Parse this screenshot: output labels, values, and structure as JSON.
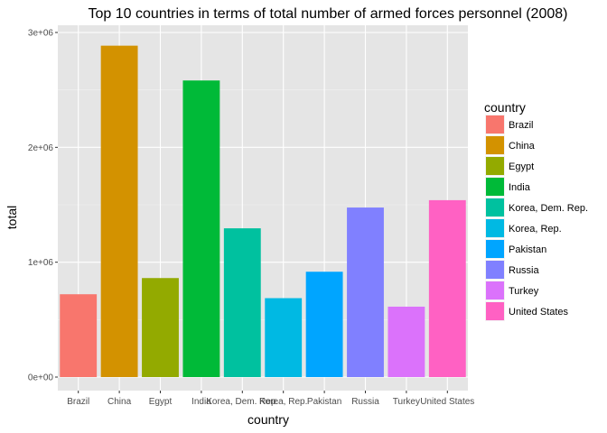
{
  "chart_data": {
    "type": "bar",
    "title": "Top 10 countries in terms of total number of armed forces personnel (2008)",
    "xlabel": "country",
    "ylabel": "total",
    "categories": [
      "Brazil",
      "China",
      "Egypt",
      "India",
      "Korea, Dem. Rep.",
      "Korea, Rep.",
      "Pakistan",
      "Russia",
      "Turkey",
      "United States"
    ],
    "values": [
      721000,
      2885000,
      862000,
      2582000,
      1295000,
      687000,
      917000,
      1476000,
      613000,
      1540000
    ],
    "ylim": [
      0,
      3000000
    ],
    "yticks": [
      {
        "value": 0,
        "label": "0e+00"
      },
      {
        "value": 1000000,
        "label": "1e+06"
      },
      {
        "value": 2000000,
        "label": "2e+06"
      },
      {
        "value": 3000000,
        "label": "3e+06"
      }
    ],
    "colors": [
      "#F8766D",
      "#D39200",
      "#93AA00",
      "#00BA38",
      "#00C19F",
      "#00B9E3",
      "#00A5FF",
      "#8080FF",
      "#DB72FB",
      "#FF61C3"
    ],
    "panel_background": "#E5E5E5",
    "grid": true,
    "legend": {
      "title": "country",
      "position": "right"
    }
  }
}
